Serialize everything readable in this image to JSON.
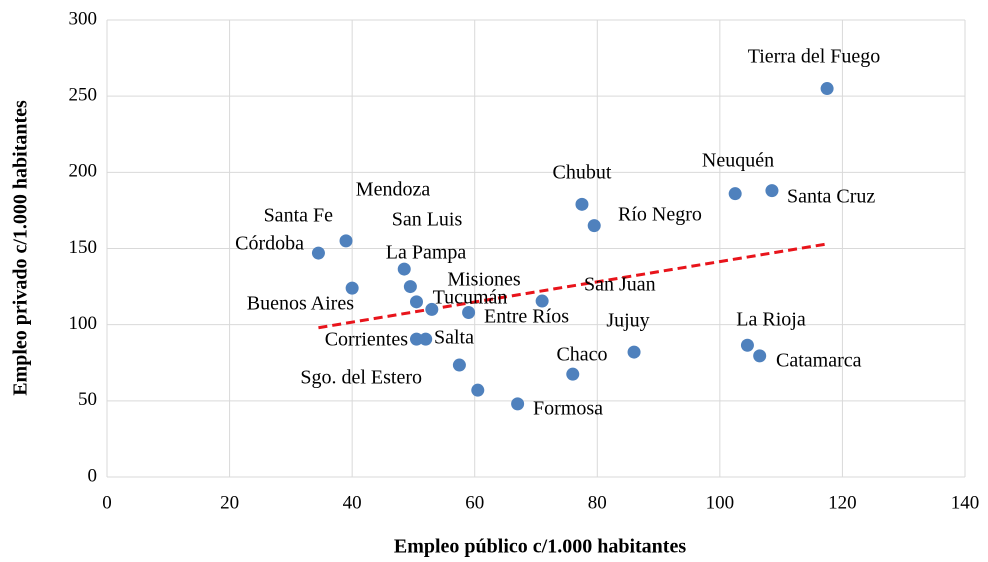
{
  "chart_data": {
    "type": "scatter",
    "xlabel": "Empleo público c/1.000 habitantes",
    "ylabel": "Empleo privado c/1.000 habitantes",
    "labels": [
      "Tierra del Fuego",
      "Neuquén",
      "Santa Cruz",
      "Chubut",
      "Río Negro",
      "Santa Fe",
      "Córdoba",
      "Buenos Aires",
      "Mendoza",
      "San Luis",
      "La Pampa",
      "Misiones",
      "Tucumán",
      "Entre Ríos",
      "San Juan",
      "Corrientes",
      "Salta",
      "Sgo. del Estero",
      "Formosa",
      "Chaco",
      "Jujuy",
      "La Rioja",
      "Catamarca"
    ],
    "x": [
      117.5,
      102.5,
      108.5,
      77.5,
      79.5,
      39,
      34.5,
      40,
      48.5,
      49.5,
      50.5,
      53,
      59,
      60.5,
      71,
      50.5,
      52,
      57.5,
      67,
      76,
      86,
      104.5,
      106.5
    ],
    "y": [
      255,
      186,
      188,
      179,
      165,
      155,
      147,
      124,
      136.5,
      125,
      115,
      110,
      108,
      57,
      115.5,
      90.5,
      90.5,
      73.5,
      48,
      67.5,
      82,
      86.5,
      79.5
    ],
    "color": "#4f81bd",
    "trendline": {
      "x": [
        34.5,
        117.5
      ],
      "y": [
        98,
        153
      ],
      "color": "#e8141b"
    },
    "xlim": [
      0,
      140
    ],
    "xticks": [
      0,
      20,
      40,
      60,
      80,
      100,
      120,
      140
    ],
    "ylim": [
      0,
      300
    ],
    "yticks": [
      0,
      50,
      100,
      150,
      200,
      250,
      300
    ],
    "grid": true
  }
}
